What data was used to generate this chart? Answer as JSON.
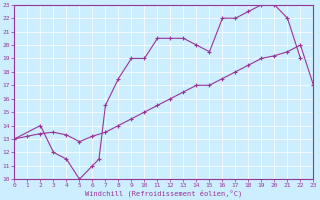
{
  "xlabel": "Windchill (Refroidissement éolien,°C)",
  "xlim": [
    0,
    23
  ],
  "ylim": [
    10,
    23
  ],
  "xticks": [
    0,
    1,
    2,
    3,
    4,
    5,
    6,
    7,
    8,
    9,
    10,
    11,
    12,
    13,
    14,
    15,
    16,
    17,
    18,
    19,
    20,
    21,
    22,
    23
  ],
  "yticks": [
    10,
    11,
    12,
    13,
    14,
    15,
    16,
    17,
    18,
    19,
    20,
    21,
    22,
    23
  ],
  "bg_color": "#cceeff",
  "line_color": "#993399",
  "curve1_x": [
    0,
    2,
    3,
    4,
    5,
    6,
    6.5,
    7,
    8,
    9,
    10,
    11,
    12,
    13,
    14,
    15,
    16,
    17,
    18,
    19,
    20,
    21,
    22
  ],
  "curve1_y": [
    13,
    14,
    12,
    11.5,
    10,
    11,
    11.5,
    15.5,
    17.5,
    19,
    19,
    20.5,
    20.5,
    20.5,
    20,
    19.5,
    22,
    22,
    22.5,
    23,
    23,
    22,
    19
  ],
  "curve2_x": [
    0,
    1,
    2,
    3,
    4,
    5,
    6,
    7,
    8,
    9,
    10,
    11,
    12,
    13,
    14,
    15,
    16,
    17,
    18,
    19,
    20,
    21,
    22,
    23
  ],
  "curve2_y": [
    13,
    13.2,
    13.4,
    13.5,
    13.3,
    12.8,
    13.2,
    13.5,
    14,
    14.5,
    15,
    15.5,
    16,
    16.5,
    17,
    17,
    17.5,
    18,
    18.5,
    19,
    19.2,
    19.5,
    20,
    17
  ],
  "marker": "+"
}
